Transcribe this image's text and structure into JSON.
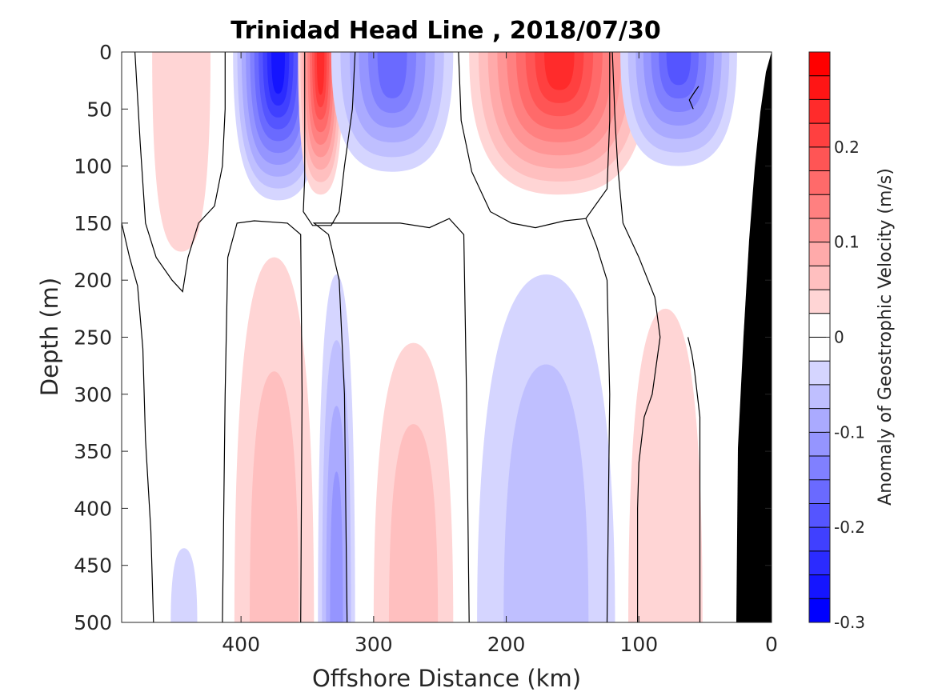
{
  "chart_data": {
    "type": "heatmap",
    "title": "Trinidad Head Line , 2018/07/30",
    "xlabel": "Offshore Distance (km)",
    "ylabel": "Depth (m)",
    "xlim": [
      490,
      0
    ],
    "ylim": [
      0,
      500
    ],
    "x_ticks": [
      {
        "value": 400,
        "label": "400"
      },
      {
        "value": 300,
        "label": "300"
      },
      {
        "value": 200,
        "label": "200"
      },
      {
        "value": 100,
        "label": "100"
      },
      {
        "value": 0,
        "label": "0"
      }
    ],
    "y_ticks": [
      {
        "value": 0,
        "label": "0"
      },
      {
        "value": 50,
        "label": "50"
      },
      {
        "value": 100,
        "label": "100"
      },
      {
        "value": 150,
        "label": "150"
      },
      {
        "value": 200,
        "label": "200"
      },
      {
        "value": 250,
        "label": "250"
      },
      {
        "value": 300,
        "label": "300"
      },
      {
        "value": 350,
        "label": "350"
      },
      {
        "value": 400,
        "label": "400"
      },
      {
        "value": 450,
        "label": "450"
      },
      {
        "value": 500,
        "label": "500"
      }
    ],
    "colorbar": {
      "label": "Anomaly of Geostrophic Velocity (m/s)",
      "range": [
        -0.3,
        0.3
      ],
      "levels": 24,
      "negative_color": "#0000ff",
      "positive_color": "#ff0000",
      "ticks": [
        {
          "value": 0.2,
          "label": "0.2"
        },
        {
          "value": 0.1,
          "label": "0.1"
        },
        {
          "value": 0,
          "label": "0"
        },
        {
          "value": -0.1,
          "label": "-0.1"
        },
        {
          "value": -0.2,
          "label": "-0.2"
        },
        {
          "value": -0.3,
          "label": "-0.3"
        }
      ]
    },
    "zero_contour_color": "#000000",
    "bathymetry_color": "#000000",
    "cells": [
      {
        "x": 445,
        "depth": 60,
        "value": 0.03
      },
      {
        "x": 372,
        "depth": 20,
        "value": -0.25
      },
      {
        "x": 340,
        "depth": 20,
        "value": 0.23
      },
      {
        "x": 286,
        "depth": 20,
        "value": -0.17
      },
      {
        "x": 160,
        "depth": 15,
        "value": 0.23
      },
      {
        "x": 70,
        "depth": 10,
        "value": -0.19
      },
      {
        "x": 375,
        "depth": 440,
        "value": 0.07
      },
      {
        "x": 328,
        "depth": 460,
        "value": -0.1
      },
      {
        "x": 270,
        "depth": 440,
        "value": 0.05
      },
      {
        "x": 170,
        "depth": 400,
        "value": -0.05
      },
      {
        "x": 80,
        "depth": 460,
        "value": 0.03
      },
      {
        "x": 443,
        "depth": 480,
        "value": -0.02
      }
    ]
  }
}
